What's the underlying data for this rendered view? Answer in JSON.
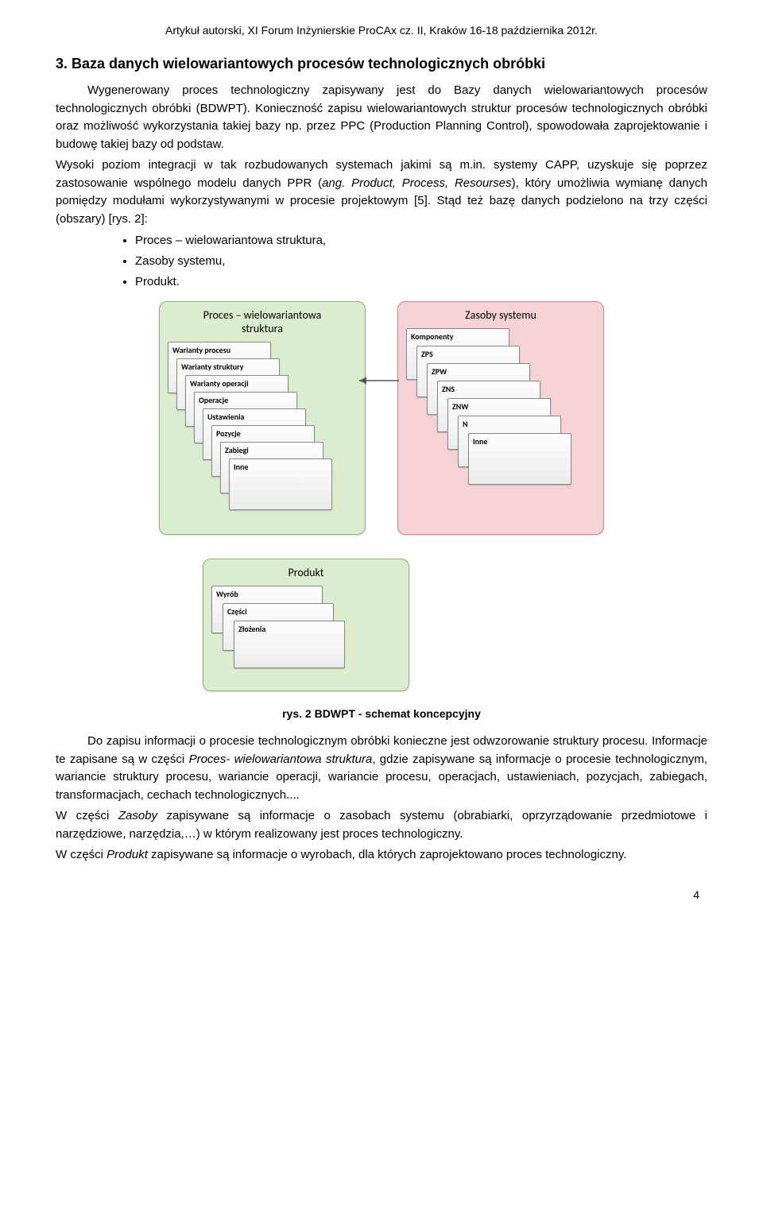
{
  "header": "Artykuł autorski, XI Forum Inżynierskie ProCAx cz. II, Kraków 16-18 października 2012r.",
  "section_title": "3. Baza danych wielowariantowych procesów technologicznych obróbki",
  "para1_a": "Wygenerowany proces technologiczny zapisywany jest do Bazy danych wielowariantowych procesów technologicznych obróbki (BDWPT). Konieczność zapisu wielowariantowych struktur procesów technologicznych obróbki oraz możliwość wykorzystania takiej bazy np. przez PPC (Production Planning Control), spowodowała zaprojektowanie i budowę takiej bazy od podstaw.",
  "para1_b": "Wysoki poziom integracji w tak rozbudowanych systemach jakimi są m.in. systemy CAPP, uzyskuje się poprzez zastosowanie wspólnego modelu danych PPR (",
  "para1_ppr_italic": "ang. Product, Process, Resourses",
  "para1_c": "), który umożliwia wymianę danych pomiędzy modułami wykorzystywanymi w procesie projektowym [5]. Stąd też bazę danych podzielono na trzy części (obszary) [rys. 2]:",
  "bullets": [
    "Proces – wielowariantowa struktura,",
    "Zasoby systemu,",
    "Produkt."
  ],
  "diagram": {
    "proces": {
      "title": "Proces – wielowariantowa\nstruktura",
      "bg": "#dbeccf",
      "border": "#8fae7a",
      "items": [
        "Warianty procesu",
        "Warianty struktury",
        "Warianty operacji",
        "Operacje",
        "Ustawienia",
        "Pozycje",
        "Zabiegi",
        "Inne"
      ]
    },
    "zasoby": {
      "title": "Zasoby systemu",
      "bg": "#f4d2d6",
      "border": "#c98a90",
      "items": [
        "Komponenty",
        "ZPS",
        "ZPW",
        "ZNS",
        "ZNW",
        "N",
        "Inne"
      ]
    },
    "produkt": {
      "title": "Produkt",
      "bg": "#dbeccf",
      "border": "#8fae7a",
      "items": [
        "Wyrób",
        "Części",
        "Złożenia"
      ]
    },
    "arrow_color": "#555"
  },
  "caption": "rys. 2 BDWPT - schemat koncepcyjny",
  "para2_a": "Do zapisu informacji o procesie technologicznym obróbki konieczne jest odwzorowanie struktury procesu. Informacje te zapisane są w części ",
  "para2_italic1": "Proces- wielowariantowa struktura",
  "para2_b": ", gdzie zapisywane są informacje o procesie technologicznym, wariancie struktury procesu, wariancie operacji, wariancie procesu, operacjach, ustawieniach, pozycjach, zabiegach, transformacjach, cechach technologicznych....",
  "para3_a": "W części ",
  "para3_italic": "Zasoby",
  "para3_b": " zapisywane są informacje o zasobach systemu (obrabiarki, oprzyrządowanie przedmiotowe i narzędziowe, narzędzia,…) w którym realizowany jest proces technologiczny.",
  "para4_a": "W części ",
  "para4_italic": "Produkt",
  "para4_b": " zapisywane są informacje o wyrobach, dla których zaprojektowano proces technologiczny.",
  "page_number": "4"
}
